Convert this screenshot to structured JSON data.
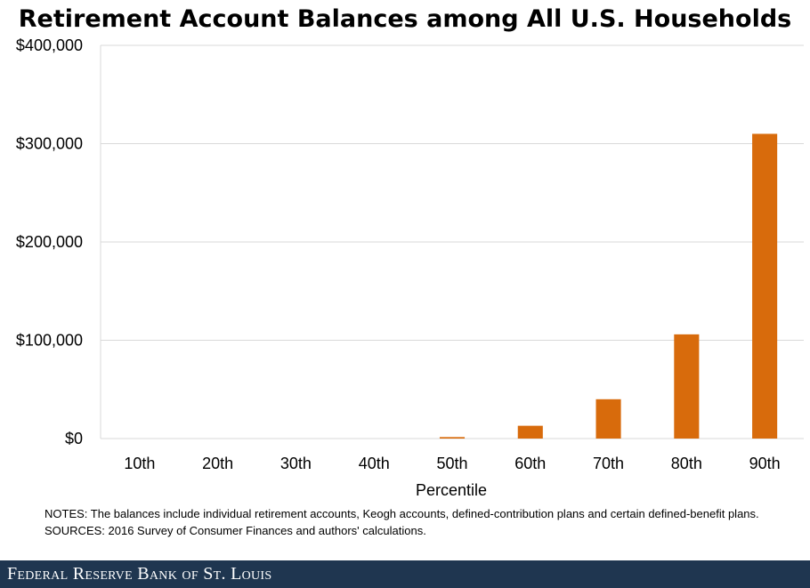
{
  "chart_data": {
    "type": "bar",
    "title": "Retirement Account Balances among All U.S. Households",
    "xlabel": "Percentile",
    "ylabel": "",
    "categories": [
      "10th",
      "20th",
      "30th",
      "40th",
      "50th",
      "60th",
      "70th",
      "80th",
      "90th"
    ],
    "values": [
      0,
      0,
      0,
      0,
      1500,
      13000,
      40000,
      106000,
      310000
    ],
    "ylim": [
      0,
      400000
    ],
    "yticks": [
      0,
      100000,
      200000,
      300000,
      400000
    ],
    "ytick_labels": [
      "$0",
      "$100,000",
      "$200,000",
      "$300,000",
      "$400,000"
    ],
    "grid": "horizontal",
    "legend": "none",
    "bar_color": "#d86b0c",
    "grid_color": "#d9d9d9"
  },
  "notes": {
    "notes_text": "NOTES: The balances include individual retirement accounts, Keogh accounts, defined-contribution plans and certain defined-benefit plans.",
    "sources_text": "SOURCES: 2016 Survey of Consumer Finances and authors' calculations."
  },
  "footer": {
    "text": "Federal Reserve Bank of St. Louis",
    "background": "#1f3650"
  }
}
